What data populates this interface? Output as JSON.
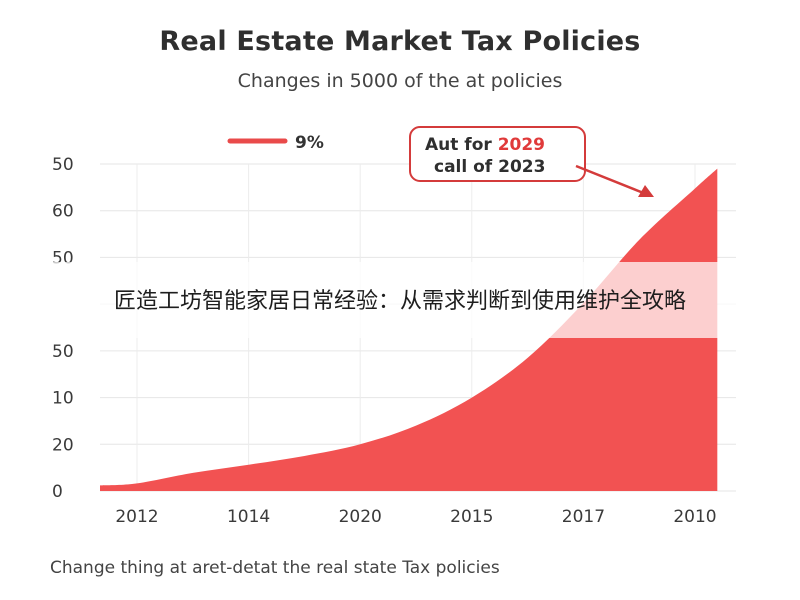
{
  "chart_data": {
    "type": "area",
    "title": "Real Estate Market Tax Policies",
    "subtitle": "Changes in 5000 of the at policies",
    "caption": "Change thing at aret-detat the real state Tax policies",
    "y_tick_labels": [
      "0",
      "20",
      "10",
      "50",
      "",
      "50",
      "60",
      "50"
    ],
    "x_tick_labels": [
      "2012",
      "1014",
      "2020",
      "2015",
      "2017",
      "2010"
    ],
    "legend": {
      "label": "9%",
      "color": "#e94a4a",
      "position": "top-left"
    },
    "annotation": {
      "line1_prefix": "Aut for ",
      "line1_highlight": "2029",
      "line2": "call of 2023"
    },
    "grid": true,
    "series": [
      {
        "color": "#f25252",
        "x": [
          0,
          0.5,
          1,
          1.5,
          2,
          2.5,
          3,
          3.5,
          4,
          4.5,
          5,
          5.2
        ],
        "y": [
          0.65,
          1.55,
          2.25,
          3.0,
          4.0,
          5.6,
          8.0,
          11.4,
          16.1,
          21.5,
          25.9,
          27.6
        ]
      }
    ],
    "y_range": [
      0,
      28
    ],
    "x_range": [
      0,
      5
    ]
  },
  "overlay": {
    "text": "匠造工坊智能家居日常经验：从需求判断到使用维护全攻略"
  }
}
